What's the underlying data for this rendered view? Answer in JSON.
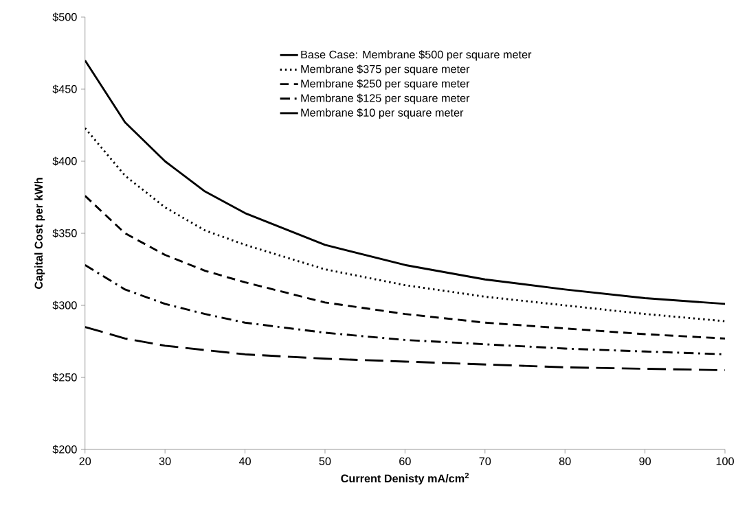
{
  "chart_data": {
    "type": "line",
    "xlabel": "Current Denisty mA/cm$^{2}$",
    "ylabel": "Capital Cost per kWh",
    "x": [
      20,
      25,
      30,
      35,
      40,
      50,
      60,
      70,
      80,
      90,
      100
    ],
    "xlim": [
      20,
      100
    ],
    "xticks": [
      20,
      30,
      40,
      50,
      60,
      70,
      80,
      90,
      100
    ],
    "ylim": [
      200,
      500
    ],
    "yticks": [
      {
        "value": 200,
        "label": "$200"
      },
      {
        "value": 250,
        "label": "$250"
      },
      {
        "value": 300,
        "label": "$300"
      },
      {
        "value": 350,
        "label": "$350"
      },
      {
        "value": 400,
        "label": "$400"
      },
      {
        "value": 450,
        "label": "$450"
      },
      {
        "value": 500,
        "label": "$500"
      }
    ],
    "grid": false,
    "legend": "top",
    "marker": "none",
    "series": [
      {
        "name": "Base Case:  Membrane $500 per square meter",
        "color": "#000000",
        "line_style": "solid",
        "values": [
          470,
          427,
          400,
          379,
          364,
          342,
          328,
          318,
          311,
          305,
          301
        ]
      },
      {
        "name": "Membrane $375 per square meter",
        "color": "#000000",
        "line_style": "dotted",
        "values": [
          423,
          390,
          368,
          352,
          342,
          325,
          314,
          306,
          300,
          294,
          289
        ]
      },
      {
        "name": "Membrane $250 per square meter",
        "color": "#000000",
        "line_style": "dashed",
        "values": [
          376,
          350,
          335,
          324,
          316,
          302,
          294,
          288,
          284,
          280,
          277
        ]
      },
      {
        "name": "Membrane $125 per square meter",
        "color": "#000000",
        "line_style": "dashdot",
        "values": [
          328,
          311,
          301,
          294,
          288,
          281,
          276,
          273,
          270,
          268,
          266
        ]
      },
      {
        "name": "Membrane $10 per square meter",
        "color": "#000000",
        "line_style": "longdash",
        "values": [
          285,
          277,
          272,
          269,
          266,
          263,
          261,
          259,
          257,
          256,
          255
        ]
      }
    ]
  }
}
